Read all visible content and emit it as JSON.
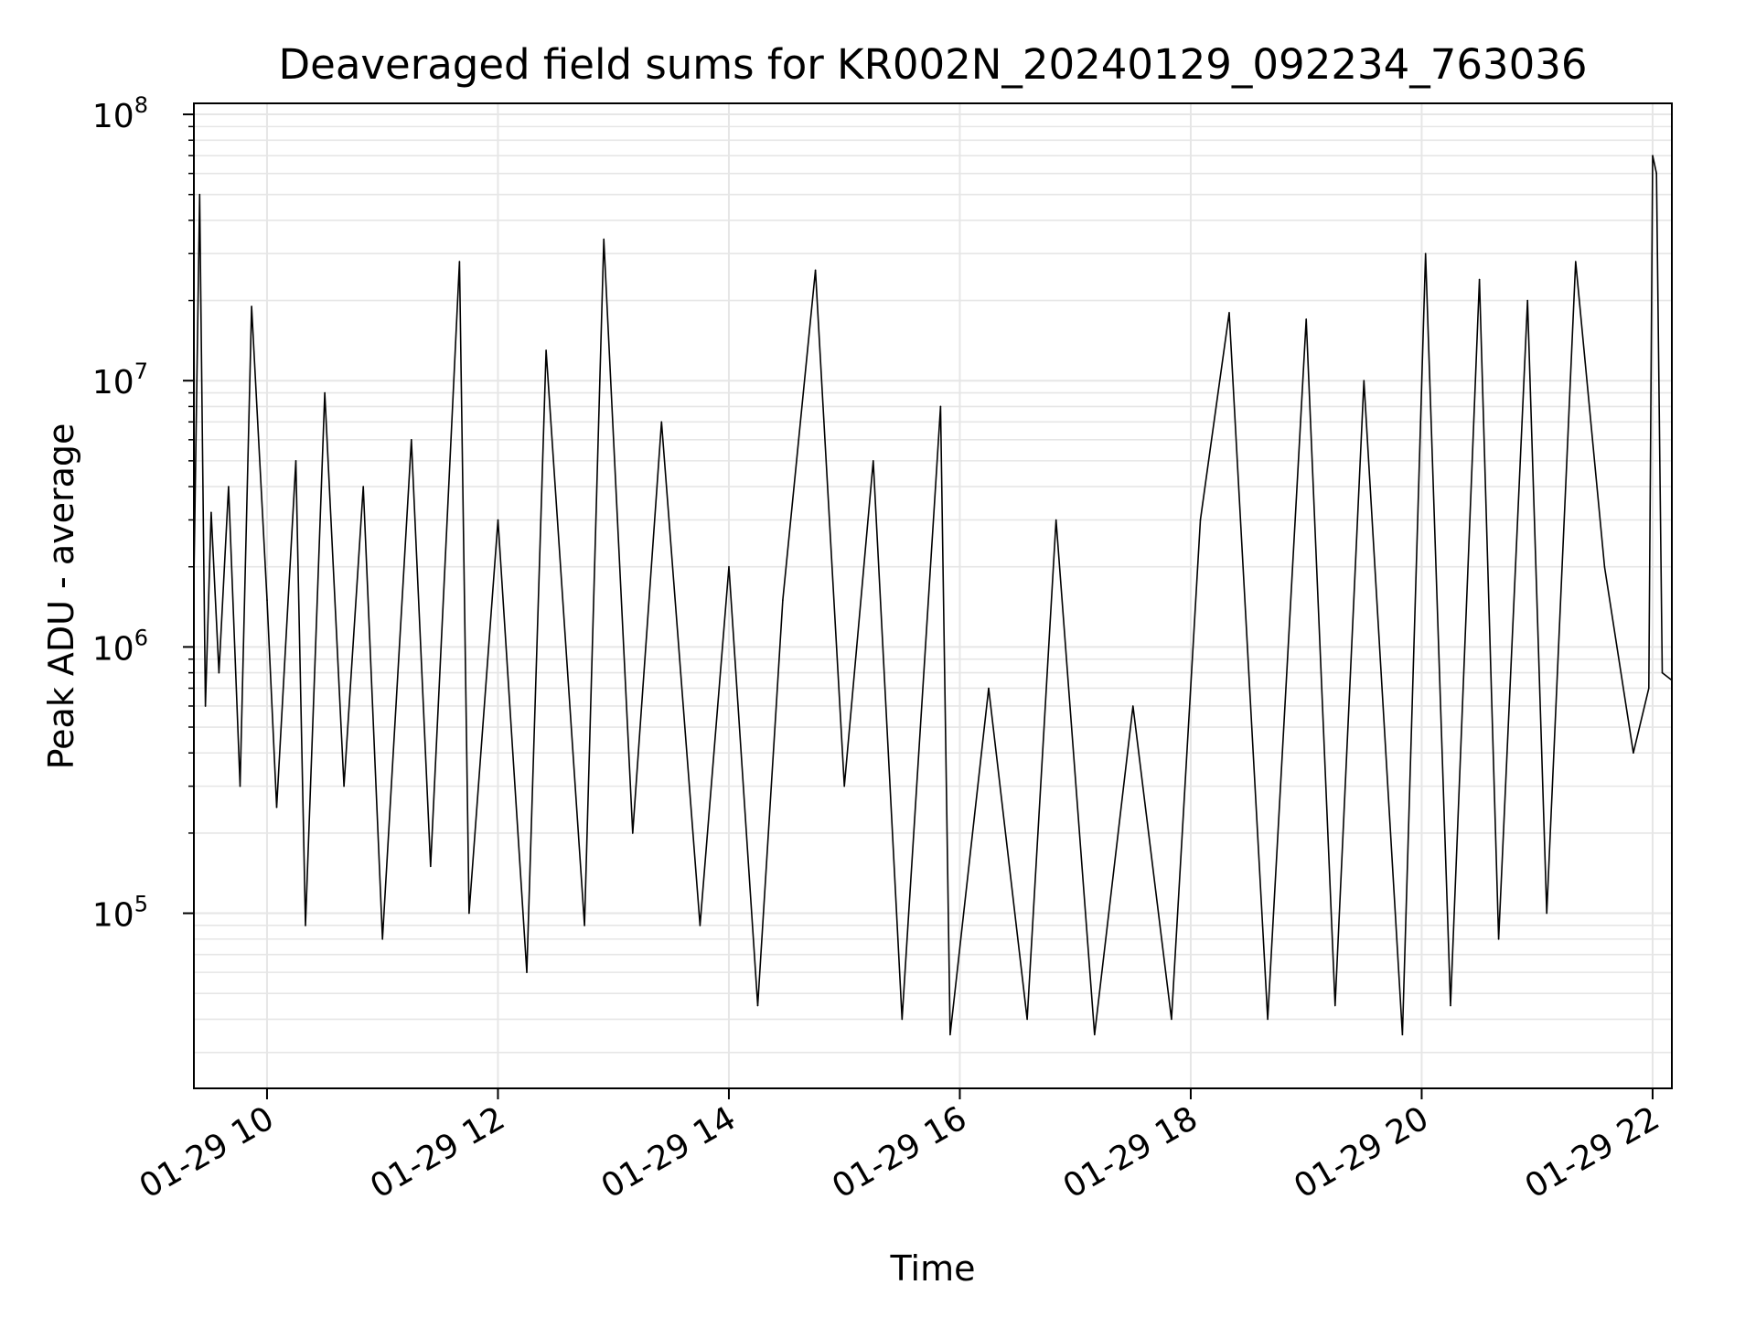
{
  "chart_data": {
    "type": "line",
    "title": "Deaveraged field sums for KR002N_20240129_092234_763036",
    "xlabel": "Time",
    "ylabel": "Peak ADU - average",
    "yscale": "log",
    "xlim": [
      "2024-01-29 09:22",
      "2024-01-29 22:10"
    ],
    "ylim": [
      22000,
      110000000
    ],
    "grid": true,
    "line_color": "#000000",
    "x_ticks": [
      "01-29 10",
      "01-29 12",
      "01-29 14",
      "01-29 16",
      "01-29 18",
      "01-29 20",
      "01-29 22"
    ],
    "y_ticks": [
      {
        "base": "10",
        "exp": "5"
      },
      {
        "base": "10",
        "exp": "6"
      },
      {
        "base": "10",
        "exp": "7"
      },
      {
        "base": "10",
        "exp": "8"
      }
    ],
    "series": [
      {
        "x": [
          "2024-01-29 09:22",
          "2024-01-29 09:25",
          "2024-01-29 09:28",
          "2024-01-29 09:31",
          "2024-01-29 09:35",
          "2024-01-29 09:40",
          "2024-01-29 09:46",
          "2024-01-29 09:52",
          "2024-01-29 10:00",
          "2024-01-29 10:05",
          "2024-01-29 10:15",
          "2024-01-29 10:20",
          "2024-01-29 10:30",
          "2024-01-29 10:40",
          "2024-01-29 10:50",
          "2024-01-29 11:00",
          "2024-01-29 11:15",
          "2024-01-29 11:25",
          "2024-01-29 11:40",
          "2024-01-29 11:45",
          "2024-01-29 12:00",
          "2024-01-29 12:15",
          "2024-01-29 12:25",
          "2024-01-29 12:45",
          "2024-01-29 12:55",
          "2024-01-29 13:10",
          "2024-01-29 13:25",
          "2024-01-29 13:45",
          "2024-01-29 14:00",
          "2024-01-29 14:15",
          "2024-01-29 14:28",
          "2024-01-29 14:45",
          "2024-01-29 15:00",
          "2024-01-29 15:15",
          "2024-01-29 15:30",
          "2024-01-29 15:50",
          "2024-01-29 15:55",
          "2024-01-29 16:15",
          "2024-01-29 16:35",
          "2024-01-29 16:50",
          "2024-01-29 17:10",
          "2024-01-29 17:30",
          "2024-01-29 17:50",
          "2024-01-29 18:05",
          "2024-01-29 18:20",
          "2024-01-29 18:40",
          "2024-01-29 19:00",
          "2024-01-29 19:15",
          "2024-01-29 19:30",
          "2024-01-29 19:50",
          "2024-01-29 20:02",
          "2024-01-29 20:15",
          "2024-01-29 20:30",
          "2024-01-29 20:40",
          "2024-01-29 20:55",
          "2024-01-29 21:05",
          "2024-01-29 21:20",
          "2024-01-29 21:35",
          "2024-01-29 21:50",
          "2024-01-29 21:58",
          "2024-01-29 22:00",
          "2024-01-29 22:02",
          "2024-01-29 22:05",
          "2024-01-29 22:10"
        ],
        "y": [
          1800000,
          50000000,
          600000,
          3200000,
          800000,
          4000000,
          300000,
          19000000,
          1500000,
          250000,
          5000000,
          90000,
          9000000,
          300000,
          4000000,
          80000,
          6000000,
          150000,
          28000000,
          100000,
          3000000,
          60000,
          13000000,
          90000,
          34000000,
          200000,
          7000000,
          90000,
          2000000,
          45000,
          1500000,
          26000000,
          300000,
          5000000,
          40000,
          8000000,
          35000,
          700000,
          40000,
          3000000,
          35000,
          600000,
          40000,
          3000000,
          18000000,
          40000,
          17000000,
          45000,
          10000000,
          35000,
          30000000,
          45000,
          24000000,
          80000,
          20000000,
          100000,
          28000000,
          2000000,
          400000,
          700000,
          70000000,
          60000000,
          800000,
          750000
        ]
      }
    ]
  }
}
